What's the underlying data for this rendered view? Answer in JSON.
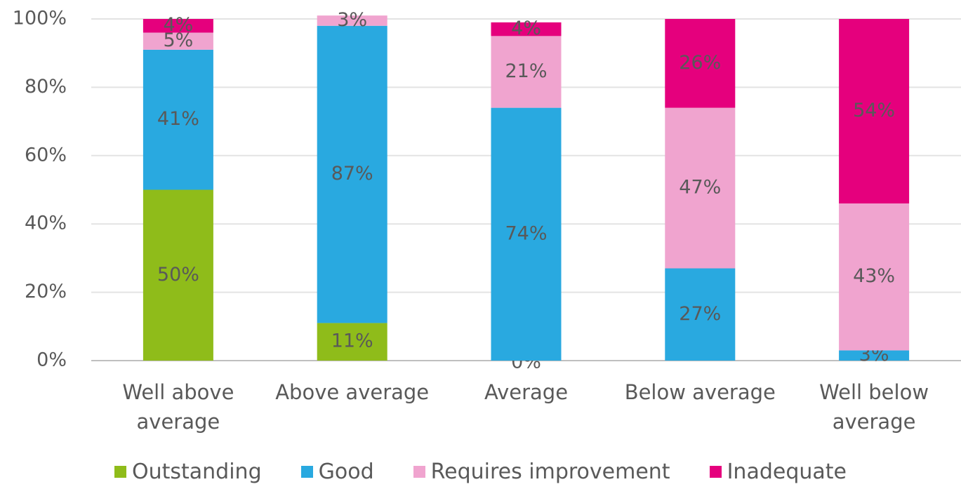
{
  "chart_data": {
    "type": "stacked_bar",
    "categories": [
      "Well above average",
      "Above average",
      "Average",
      "Below average",
      "Well below average"
    ],
    "series": [
      {
        "name": "Outstanding",
        "color": "#8fbc1a",
        "values": [
          50,
          11,
          0,
          null,
          null
        ],
        "value_labels": [
          "50%",
          "11%",
          "0%",
          null,
          null
        ]
      },
      {
        "name": "Good",
        "color": "#29a9e0",
        "values": [
          41,
          87,
          74,
          27,
          3
        ],
        "value_labels": [
          "41%",
          "87%",
          "74%",
          "27%",
          "3%"
        ]
      },
      {
        "name": "Requires improvement",
        "color": "#f0a4cf",
        "values": [
          5,
          3,
          21,
          47,
          43
        ],
        "value_labels": [
          "5%",
          "3%",
          "21%",
          "47%",
          "43%"
        ]
      },
      {
        "name": "Inadequate",
        "color": "#e5007d",
        "values": [
          4,
          null,
          4,
          26,
          54
        ],
        "value_labels": [
          "4%",
          null,
          "4%",
          "26%",
          "54%"
        ]
      }
    ],
    "ylim": [
      0,
      100
    ],
    "yticks": [
      {
        "value": 0,
        "label": "0%"
      },
      {
        "value": 20,
        "label": "20%"
      },
      {
        "value": 40,
        "label": "40%"
      },
      {
        "value": 60,
        "label": "60%"
      },
      {
        "value": 80,
        "label": "80%"
      },
      {
        "value": 100,
        "label": "100%"
      }
    ],
    "grid": true,
    "legend": "bottom"
  }
}
